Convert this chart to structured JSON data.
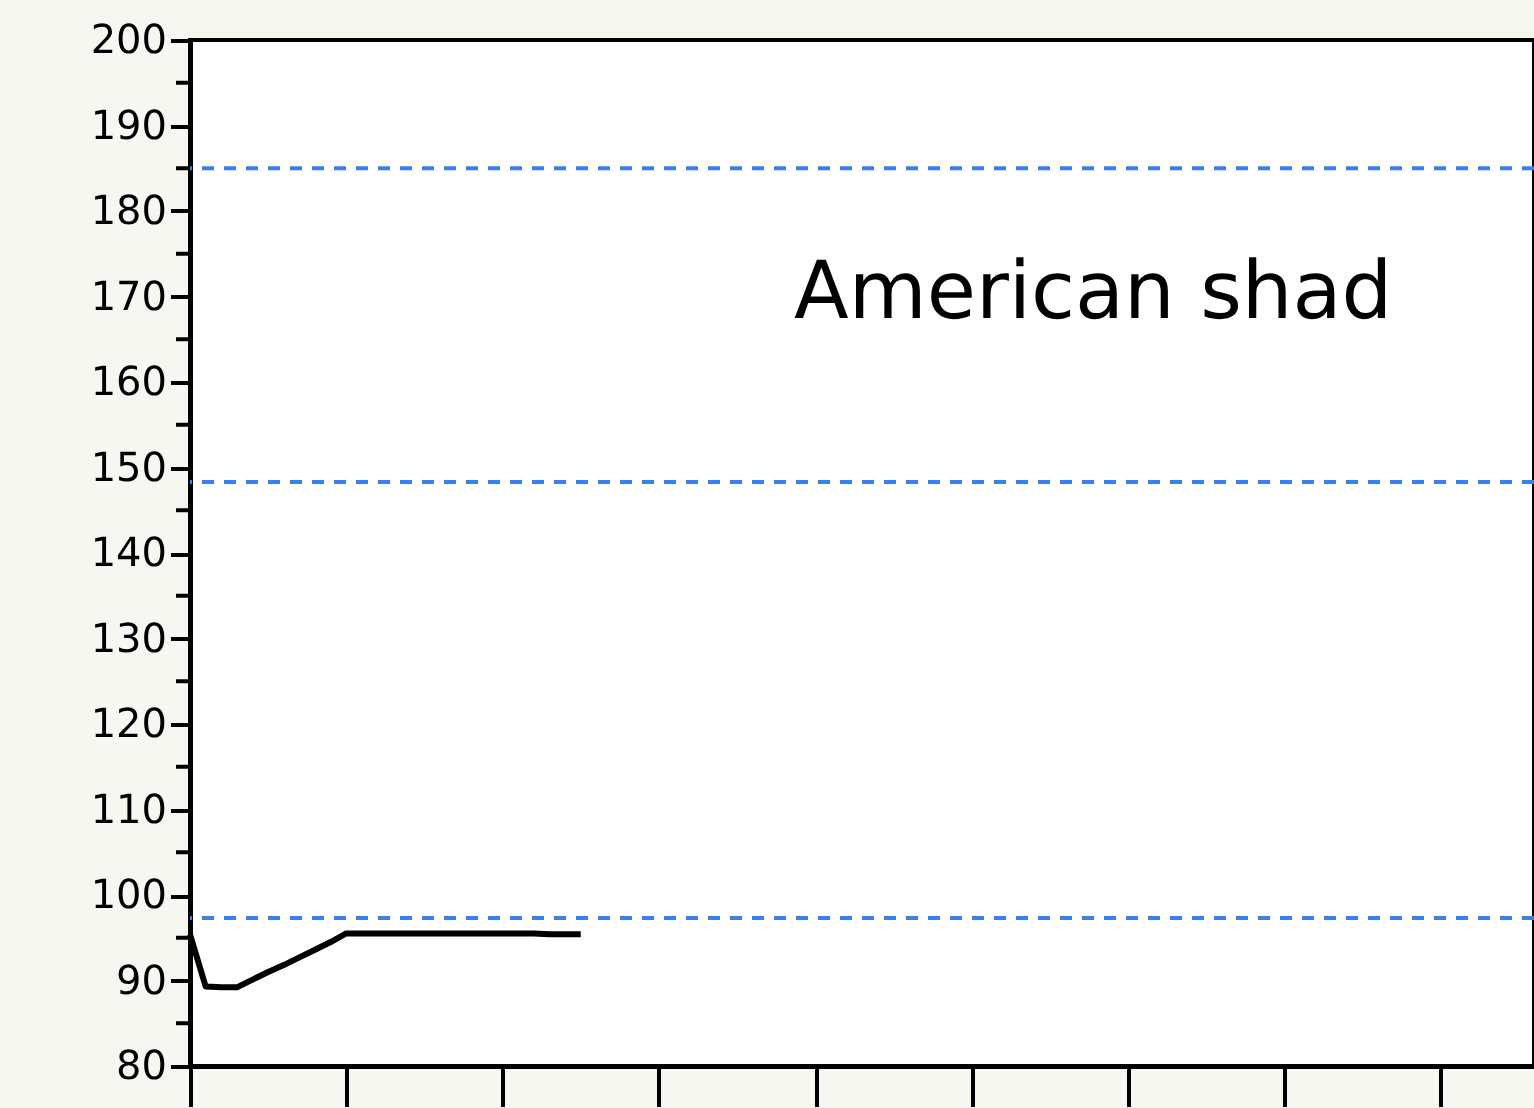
{
  "chart_data": {
    "type": "line",
    "annotations": [
      "American shad"
    ],
    "categories": [
      null,
      null,
      null,
      null,
      null,
      null,
      null,
      null,
      null,
      null,
      null,
      null,
      null,
      null,
      null,
      null,
      null,
      null,
      null,
      null,
      null,
      null,
      null,
      null,
      null,
      null,
      null,
      null,
      null,
      null,
      null,
      null,
      null,
      null,
      null,
      null,
      null,
      null,
      null,
      null,
      null,
      null,
      null,
      null,
      null,
      null,
      null,
      null,
      null,
      null,
      null,
      null,
      null,
      null,
      null,
      null,
      null,
      null,
      null,
      null,
      null,
      null,
      null,
      null,
      null,
      null,
      null,
      null,
      null,
      null,
      null,
      null,
      null,
      null,
      null,
      null,
      null,
      null,
      null,
      null,
      null,
      null,
      null,
      null,
      null,
      null,
      null
    ],
    "series": [
      {
        "color": "#000000",
        "values": [
          95.4,
          89.3,
          89.2,
          89.2,
          90.1,
          91.0,
          91.8,
          92.7,
          93.6,
          94.5,
          95.5,
          95.5,
          95.5,
          95.5,
          95.5,
          95.5,
          95.5,
          95.5,
          95.5,
          95.5,
          95.5,
          95.5,
          95.5,
          95.4,
          95.4,
          95.4,
          null,
          null,
          null,
          null,
          null,
          null,
          null,
          null,
          null,
          null,
          null,
          null,
          null,
          null,
          null,
          null,
          null,
          null,
          null,
          null,
          null,
          null,
          null,
          null,
          null,
          null,
          null,
          null,
          null,
          null,
          null,
          null,
          null,
          null,
          null,
          null,
          null,
          null,
          null,
          null,
          null,
          null,
          null,
          null,
          null,
          null,
          null,
          null,
          null,
          null,
          null,
          null,
          null,
          null,
          null,
          null,
          null,
          null,
          null,
          null,
          null
        ]
      }
    ],
    "line_style": "solid",
    "ylim": [
      80,
      200
    ],
    "yticks": [
      80,
      {
        "value": 85,
        "label": null
      },
      90,
      {
        "value": 95,
        "label": null
      },
      100,
      {
        "value": 105,
        "label": null
      },
      110,
      {
        "value": 115,
        "label": null
      },
      120,
      {
        "value": 125,
        "label": null
      },
      130,
      {
        "value": 135,
        "label": null
      },
      140,
      {
        "value": 145,
        "label": null
      },
      150,
      {
        "value": 155,
        "label": null
      },
      160,
      {
        "value": 165,
        "label": null
      },
      170,
      {
        "value": 175,
        "label": null
      },
      180,
      {
        "value": 185,
        "label": null
      },
      190,
      {
        "value": 195,
        "label": null
      },
      200
    ],
    "tick_labels": "y",
    "grid": false,
    "ref_lines": [
      {
        "axis": "y",
        "value": 185,
        "color": "#3a7ff0",
        "line_style": "dashed"
      },
      {
        "axis": "y",
        "value": 148.3,
        "color": "#3a7ff0",
        "line_style": "dashed"
      },
      {
        "axis": "y",
        "value": 97.3,
        "color": "#3a7ff0",
        "line_style": "dashed"
      }
    ]
  }
}
